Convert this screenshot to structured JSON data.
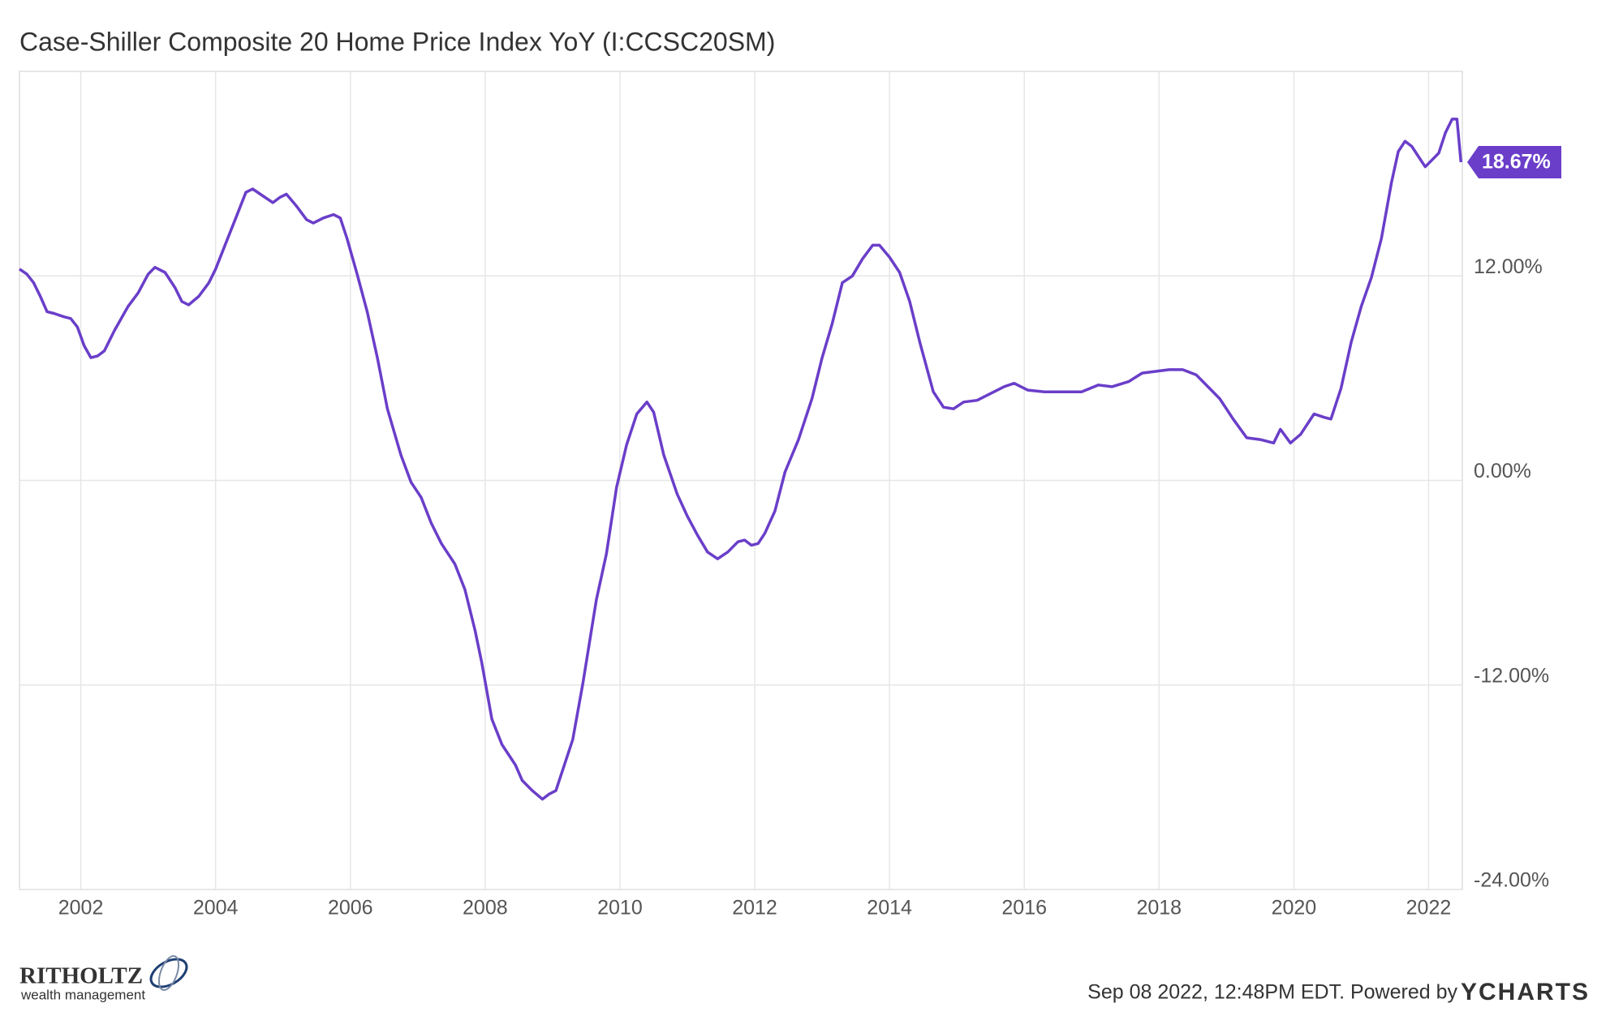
{
  "chart_data": {
    "type": "line",
    "title": "Case-Shiller Composite 20 Home Price Index YoY (I:CCSC20SM)",
    "xlim": [
      2001.09,
      2022.5
    ],
    "xticks": [
      2002,
      2004,
      2006,
      2008,
      2010,
      2012,
      2014,
      2016,
      2018,
      2020,
      2022
    ],
    "ylim": [
      -24,
      24
    ],
    "yticks": [
      {
        "value": -24,
        "label": "-24.00%"
      },
      {
        "value": -12,
        "label": "-12.00%"
      },
      {
        "value": 0,
        "label": "0.00%"
      },
      {
        "value": 12,
        "label": "12.00%"
      }
    ],
    "grid": true,
    "x": [
      2001.09,
      2001.2,
      2001.3,
      2001.4,
      2001.5,
      2001.6,
      2001.75,
      2001.85,
      2001.95,
      2002.05,
      2002.15,
      2002.25,
      2002.35,
      2002.5,
      2002.7,
      2002.85,
      2003.0,
      2003.1,
      2003.25,
      2003.4,
      2003.5,
      2003.6,
      2003.75,
      2003.9,
      2004.0,
      2004.15,
      2004.3,
      2004.45,
      2004.55,
      2004.7,
      2004.85,
      2004.95,
      2005.05,
      2005.2,
      2005.35,
      2005.45,
      2005.6,
      2005.75,
      2005.85,
      2005.95,
      2006.1,
      2006.25,
      2006.4,
      2006.55,
      2006.75,
      2006.9,
      2007.05,
      2007.2,
      2007.35,
      2007.55,
      2007.7,
      2007.85,
      2007.95,
      2008.1,
      2008.25,
      2008.35,
      2008.45,
      2008.55,
      2008.7,
      2008.85,
      2008.95,
      2009.05,
      2009.15,
      2009.3,
      2009.45,
      2009.65,
      2009.8,
      2009.95,
      2010.1,
      2010.25,
      2010.4,
      2010.5,
      2010.65,
      2010.85,
      2011.0,
      2011.15,
      2011.3,
      2011.45,
      2011.6,
      2011.75,
      2011.85,
      2011.95,
      2012.05,
      2012.15,
      2012.3,
      2012.45,
      2012.65,
      2012.85,
      2013.0,
      2013.15,
      2013.3,
      2013.45,
      2013.6,
      2013.75,
      2013.85,
      2014.0,
      2014.15,
      2014.3,
      2014.45,
      2014.65,
      2014.8,
      2014.95,
      2015.1,
      2015.3,
      2015.5,
      2015.7,
      2015.85,
      2016.05,
      2016.3,
      2016.6,
      2016.85,
      2017.1,
      2017.3,
      2017.55,
      2017.75,
      2017.95,
      2018.15,
      2018.35,
      2018.55,
      2018.75,
      2018.9,
      2019.1,
      2019.3,
      2019.5,
      2019.7,
      2019.8,
      2019.95,
      2020.1,
      2020.3,
      2020.45,
      2020.55,
      2020.7,
      2020.85,
      2021.0,
      2021.15,
      2021.3,
      2021.45,
      2021.55,
      2021.65,
      2021.75,
      2021.85,
      2021.95,
      2022.05,
      2022.15,
      2022.25,
      2022.35,
      2022.42,
      2022.48
    ],
    "series": [
      {
        "color": "#6a3ec9",
        "values": [
          12.4,
          12.1,
          11.6,
          10.8,
          9.9,
          9.8,
          9.6,
          9.5,
          9.0,
          7.9,
          7.2,
          7.3,
          7.6,
          8.8,
          10.2,
          11.0,
          12.1,
          12.5,
          12.2,
          11.3,
          10.5,
          10.3,
          10.8,
          11.6,
          12.4,
          13.9,
          15.4,
          16.9,
          17.1,
          16.7,
          16.3,
          16.6,
          16.8,
          16.1,
          15.3,
          15.1,
          15.4,
          15.6,
          15.4,
          14.2,
          12.1,
          9.9,
          7.2,
          4.2,
          1.5,
          -0.1,
          -1.0,
          -2.5,
          -3.7,
          -4.9,
          -6.4,
          -8.8,
          -10.7,
          -14.0,
          -15.5,
          -16.1,
          -16.7,
          -17.6,
          -18.2,
          -18.7,
          -18.4,
          -18.2,
          -17.0,
          -15.2,
          -11.9,
          -7.0,
          -4.3,
          -0.4,
          2.1,
          3.9,
          4.6,
          4.0,
          1.5,
          -0.8,
          -2.1,
          -3.2,
          -4.2,
          -4.6,
          -4.2,
          -3.6,
          -3.5,
          -3.8,
          -3.7,
          -3.1,
          -1.8,
          0.5,
          2.4,
          4.8,
          7.2,
          9.2,
          11.6,
          12.0,
          13.0,
          13.8,
          13.8,
          13.1,
          12.2,
          10.5,
          8.1,
          5.2,
          4.3,
          4.2,
          4.6,
          4.7,
          5.1,
          5.5,
          5.7,
          5.3,
          5.2,
          5.2,
          5.2,
          5.6,
          5.5,
          5.8,
          6.3,
          6.4,
          6.5,
          6.5,
          6.2,
          5.4,
          4.8,
          3.6,
          2.5,
          2.4,
          2.2,
          3.0,
          2.2,
          2.7,
          3.9,
          3.7,
          3.6,
          5.4,
          8.1,
          10.2,
          11.9,
          14.2,
          17.5,
          19.3,
          19.9,
          19.6,
          19.0,
          18.4,
          18.8,
          19.2,
          20.4,
          21.2,
          21.2,
          18.67
        ],
        "value_labels": [
          null,
          null,
          null,
          null,
          null,
          null,
          null,
          null,
          null,
          null,
          null,
          null,
          null,
          null,
          null,
          null,
          null,
          null,
          null,
          null,
          null,
          null,
          null,
          null,
          null,
          null,
          null,
          null,
          null,
          null,
          null,
          null,
          null,
          null,
          null,
          null,
          null,
          null,
          null,
          null,
          null,
          null,
          null,
          null,
          null,
          null,
          null,
          null,
          null,
          null,
          null,
          null,
          null,
          null,
          null,
          null,
          null,
          null,
          null,
          null,
          null,
          null,
          null,
          null,
          null,
          null,
          null,
          null,
          null,
          null,
          null,
          null,
          null,
          null,
          null,
          null,
          null,
          null,
          null,
          null,
          null,
          null,
          null,
          null,
          null,
          null,
          null,
          null,
          null,
          null,
          null,
          null,
          null,
          null,
          null,
          null,
          null,
          null,
          null,
          null,
          null,
          null,
          null,
          null,
          null,
          null,
          null,
          null,
          null,
          null,
          null,
          null,
          null,
          null,
          null,
          null,
          null,
          null,
          null,
          null,
          null,
          null,
          null,
          null,
          null,
          null,
          null,
          null,
          null,
          null,
          null,
          null,
          null,
          null,
          null,
          null,
          null,
          null,
          null,
          null,
          null,
          null,
          null,
          null,
          null,
          null,
          null,
          "18.67%"
        ]
      }
    ]
  },
  "footer": {
    "timestamp": "Sep 08 2022, 12:48PM EDT. Powered by",
    "brand": "YCHARTS",
    "logo_name": "RITHOLTZ",
    "logo_tagline": "wealth management"
  }
}
